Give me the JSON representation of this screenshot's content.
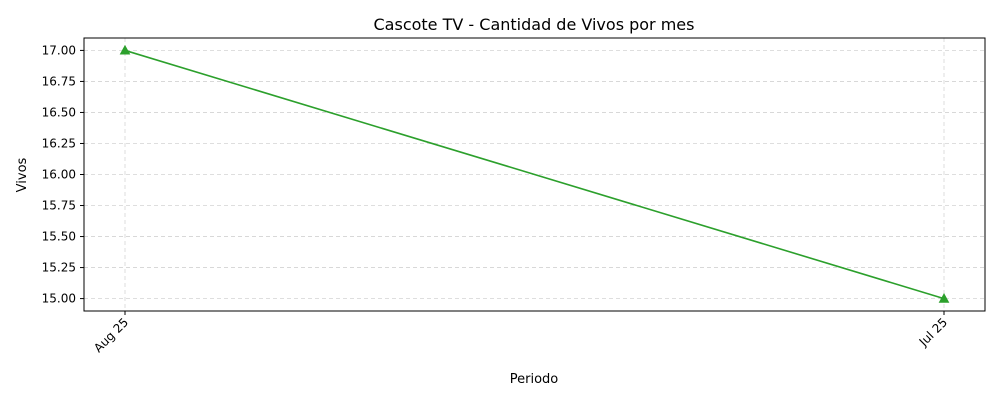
{
  "chart_data": {
    "type": "line",
    "title": "Cascote TV - Cantidad de Vivos por mes",
    "xlabel": "Periodo",
    "ylabel": "Vivos",
    "categories": [
      "Aug 25",
      "Jul 25"
    ],
    "series": [
      {
        "values": [
          17,
          15
        ],
        "color": "#2ca02c",
        "marker": "triangle-up"
      }
    ],
    "ylim": [
      14.9,
      17.1
    ],
    "yticks": [
      15.0,
      15.25,
      15.5,
      15.75,
      16.0,
      16.25,
      16.5,
      16.75,
      17.0
    ],
    "ytick_labels": [
      "15.00",
      "15.25",
      "15.50",
      "15.75",
      "16.00",
      "16.25",
      "16.50",
      "16.75",
      "17.00"
    ],
    "grid": true,
    "xtick_rotation": 45
  }
}
